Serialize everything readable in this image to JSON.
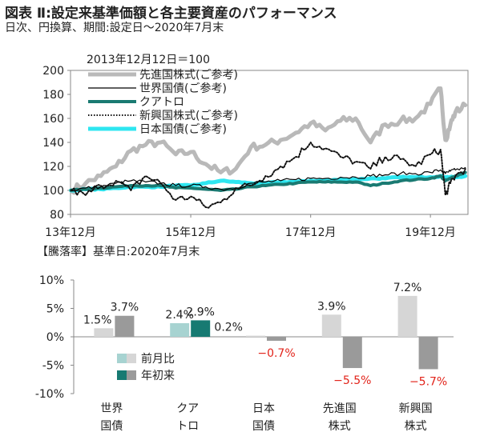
{
  "title": "図表 Ⅱ:設定来基準価額と各主要資産のパフォーマンス",
  "subtitle": "日次、円換算、期間:設定日～2020年7月末",
  "bar_heading": "【騰落率】基準日:2020年7月末",
  "chart_data": [
    {
      "type": "line",
      "note": "2013年12月12日＝100",
      "ylim": [
        80,
        200
      ],
      "yticks": [
        80,
        100,
        120,
        140,
        160,
        180,
        200
      ],
      "xticks": [
        "13年12月",
        "15年12月",
        "17年12月",
        "19年12月"
      ],
      "x": [
        "2013-12",
        "2014-03",
        "2014-06",
        "2014-09",
        "2014-12",
        "2015-03",
        "2015-06",
        "2015-09",
        "2015-12",
        "2016-03",
        "2016-06",
        "2016-09",
        "2016-12",
        "2017-03",
        "2017-06",
        "2017-09",
        "2017-12",
        "2018-03",
        "2018-06",
        "2018-09",
        "2018-12",
        "2019-03",
        "2019-06",
        "2019-09",
        "2019-12",
        "2020-02",
        "2020-03",
        "2020-04",
        "2020-05",
        "2020-07"
      ],
      "series": [
        {
          "name": "先進国株式(ご参考)",
          "color": "#b9b9b9",
          "style": "thick",
          "values": [
            100,
            106,
            112,
            120,
            133,
            138,
            140,
            130,
            132,
            122,
            115,
            118,
            136,
            138,
            142,
            148,
            156,
            150,
            158,
            160,
            140,
            155,
            158,
            160,
            172,
            185,
            142,
            155,
            165,
            171
          ]
        },
        {
          "name": "世界国債(ご参考)",
          "color": "#000000",
          "style": "thin",
          "values": [
            100,
            102,
            103,
            106,
            108,
            107,
            106,
            104,
            104,
            103,
            101,
            102,
            106,
            107,
            108,
            109,
            110,
            110,
            111,
            111,
            112,
            113,
            114,
            114,
            115,
            117,
            114,
            116,
            117,
            119
          ]
        },
        {
          "name": "クアトロ",
          "color": "#1a7a72",
          "style": "teal",
          "values": [
            100,
            101,
            102,
            103,
            104,
            104,
            104,
            102,
            102,
            101,
            100,
            101,
            103,
            104,
            105,
            106,
            107,
            107,
            107,
            107,
            104,
            106,
            108,
            109,
            110,
            112,
            108,
            110,
            112,
            115
          ]
        },
        {
          "name": "新興国株式(ご参考)",
          "color": "#111111",
          "style": "dotted",
          "values": [
            100,
            96,
            104,
            108,
            100,
            112,
            106,
            92,
            95,
            86,
            90,
            102,
            104,
            112,
            120,
            128,
            140,
            135,
            128,
            124,
            118,
            128,
            126,
            120,
            130,
            134,
            96,
            106,
            112,
            118
          ]
        },
        {
          "name": "日本国債(ご参考)",
          "color": "#2ee6f0",
          "style": "thick",
          "values": [
            100,
            101,
            101,
            102,
            103,
            103,
            103,
            104,
            104,
            106,
            108,
            107,
            106,
            106,
            107,
            107,
            108,
            108,
            109,
            109,
            110,
            110,
            111,
            111,
            111,
            112,
            111,
            111,
            111,
            112
          ]
        }
      ]
    },
    {
      "type": "bar",
      "ylim": [
        -10,
        10
      ],
      "yticks": [
        "10%",
        "5%",
        "0%",
        "-5%",
        "-10%"
      ],
      "categories": [
        [
          "世界",
          "国債"
        ],
        [
          "クア",
          "トロ"
        ],
        [
          "日本",
          "国債"
        ],
        [
          "先進国",
          "株式"
        ],
        [
          "新興国",
          "株式"
        ]
      ],
      "series": [
        {
          "name": "前月比",
          "color": "#d6d6d6",
          "teal_color": "#a7d3d1",
          "values": [
            1.5,
            2.4,
            0.2,
            3.9,
            7.2
          ]
        },
        {
          "name": "年初来",
          "color": "#9a9a9a",
          "teal_color": "#177a72",
          "values": [
            3.7,
            2.9,
            -0.7,
            -5.5,
            -5.7
          ]
        }
      ],
      "labels": [
        [
          "1.5%",
          "3.7%"
        ],
        [
          "2.4%",
          "2.9%"
        ],
        [
          "0.2%",
          "−0.7%"
        ],
        [
          "3.9%",
          "−5.5%"
        ],
        [
          "7.2%",
          "−5.7%"
        ]
      ],
      "negative_label_color": "#e2231a"
    }
  ]
}
